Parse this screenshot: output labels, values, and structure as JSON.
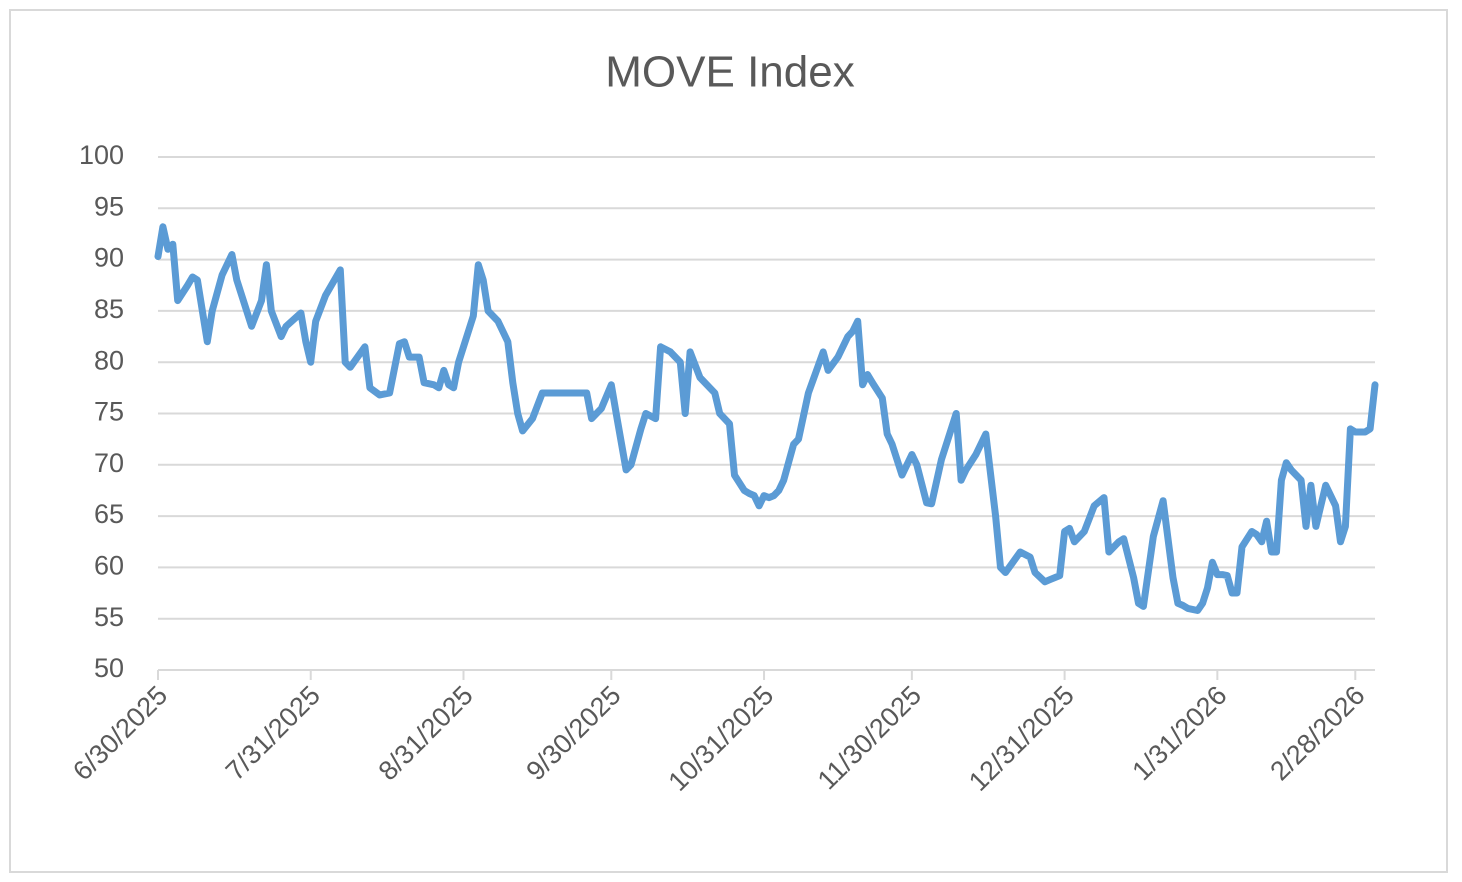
{
  "chart_data": {
    "type": "line",
    "title": "MOVE Index",
    "x": [
      "6/30/2025",
      "7/1/2025",
      "7/2/2025",
      "7/3/2025",
      "7/4/2025",
      "7/6/2025",
      "7/7/2025",
      "7/8/2025",
      "7/10/2025",
      "7/11/2025",
      "7/13/2025",
      "7/15/2025",
      "7/16/2025",
      "7/19/2025",
      "7/21/2025",
      "7/22/2025",
      "7/23/2025",
      "7/25/2025",
      "7/26/2025",
      "7/29/2025",
      "7/30/2025",
      "7/31/2025",
      "8/1/2025",
      "8/3/2025",
      "8/6/2025",
      "8/7/2025",
      "8/8/2025",
      "8/11/2025",
      "8/12/2025",
      "8/14/2025",
      "8/16/2025",
      "8/18/2025",
      "8/19/2025",
      "8/20/2025",
      "8/22/2025",
      "8/23/2025",
      "8/25/2025",
      "8/26/2025",
      "8/27/2025",
      "8/28/2025",
      "8/29/2025",
      "8/30/2025",
      "9/2/2025",
      "9/3/2025",
      "9/4/2025",
      "9/5/2025",
      "9/7/2025",
      "9/9/2025",
      "9/10/2025",
      "9/11/2025",
      "9/12/2025",
      "9/14/2025",
      "9/16/2025",
      "9/20/2025",
      "9/24/2025",
      "9/25/2025",
      "9/26/2025",
      "9/28/2025",
      "9/30/2025",
      "10/1/2025",
      "10/3/2025",
      "10/4/2025",
      "10/6/2025",
      "10/7/2025",
      "10/9/2025",
      "10/10/2025",
      "10/12/2025",
      "10/14/2025",
      "10/15/2025",
      "10/16/2025",
      "10/18/2025",
      "10/21/2025",
      "10/22/2025",
      "10/24/2025",
      "10/25/2025",
      "10/27/2025",
      "10/28/2025",
      "10/29/2025",
      "10/30/2025",
      "10/31/2025",
      "11/1/2025",
      "11/2/2025",
      "11/3/2025",
      "11/4/2025",
      "11/6/2025",
      "11/7/2025",
      "11/9/2025",
      "11/12/2025",
      "11/13/2025",
      "11/15/2025",
      "11/17/2025",
      "11/18/2025",
      "11/19/2025",
      "11/20/2025",
      "11/21/2025",
      "11/22/2025",
      "11/24/2025",
      "11/25/2025",
      "11/26/2025",
      "11/28/2025",
      "11/30/2025",
      "12/1/2025",
      "12/3/2025",
      "12/4/2025",
      "12/6/2025",
      "12/9/2025",
      "12/10/2025",
      "12/11/2025",
      "12/13/2025",
      "12/15/2025",
      "12/17/2025",
      "12/18/2025",
      "12/19/2025",
      "12/22/2025",
      "12/24/2025",
      "12/25/2025",
      "12/27/2025",
      "12/28/2025",
      "12/30/2025",
      "12/31/2025",
      "1/1/2026",
      "1/2/2026",
      "1/4/2026",
      "1/6/2026",
      "1/8/2026",
      "1/9/2026",
      "1/11/2026",
      "1/12/2026",
      "1/14/2026",
      "1/15/2026",
      "1/16/2026",
      "1/18/2026",
      "1/20/2026",
      "1/22/2026",
      "1/23/2026",
      "1/24/2026",
      "1/25/2026",
      "1/27/2026",
      "1/28/2026",
      "1/29/2026",
      "1/30/2026",
      "1/31/2026",
      "2/1/2026",
      "2/2/2026",
      "2/3/2026",
      "2/4/2026",
      "2/5/2026",
      "2/7/2026",
      "2/8/2026",
      "2/9/2026",
      "2/10/2026",
      "2/11/2026",
      "2/12/2026",
      "2/13/2026",
      "2/14/2026",
      "2/15/2026",
      "2/17/2026",
      "2/18/2026",
      "2/19/2026",
      "2/20/2026",
      "2/21/2026",
      "2/22/2026",
      "2/24/2026",
      "2/25/2026",
      "2/26/2026",
      "2/27/2026",
      "2/28/2026",
      "3/2/2026",
      "3/3/2026",
      "3/4/2026"
    ],
    "series": [
      {
        "color": "#5b9bd5",
        "values": [
          90.3,
          93.2,
          91,
          91.5,
          86,
          87.5,
          88.3,
          88,
          82,
          85,
          88.5,
          90.5,
          88,
          83.5,
          86,
          89.5,
          85,
          82.5,
          83.5,
          84.8,
          82,
          80,
          84,
          86.5,
          89,
          80,
          79.5,
          81.5,
          77.5,
          76.8,
          77,
          81.8,
          82,
          80.5,
          80.5,
          78,
          77.8,
          77.5,
          79.2,
          77.8,
          77.5,
          80,
          84.5,
          89.5,
          88,
          85,
          84,
          82,
          78,
          75,
          73.3,
          74.5,
          77,
          77,
          77,
          77,
          74.5,
          75.5,
          77.8,
          75,
          69.5,
          70,
          73.5,
          75,
          74.5,
          81.5,
          81,
          80,
          75,
          81,
          78.5,
          77,
          75,
          74,
          69,
          67.5,
          67.2,
          67,
          66,
          67,
          66.8,
          67,
          67.5,
          68.5,
          72,
          72.5,
          77,
          81,
          79.2,
          80.5,
          82.5,
          83,
          84,
          77.8,
          78.8,
          78,
          76.5,
          73,
          72,
          69,
          71,
          70,
          66.3,
          66.2,
          70.5,
          75,
          68.5,
          69.5,
          71,
          73,
          65,
          60,
          59.5,
          61.5,
          61,
          59.5,
          58.6,
          58.8,
          59.2,
          63.5,
          63.8,
          62.5,
          63.5,
          66,
          66.8,
          61.5,
          62.5,
          62.8,
          59,
          56.5,
          56.2,
          63,
          66.5,
          59,
          56.5,
          56.3,
          56,
          55.8,
          56.5,
          58,
          60.5,
          59.3,
          59.3,
          59.2,
          57.5,
          57.5,
          62,
          63.5,
          63.2,
          62.5,
          64.5,
          61.5,
          61.5,
          68.5,
          70.2,
          69.5,
          68.5,
          64,
          68,
          64,
          66,
          68,
          66,
          62.5,
          64,
          73.5,
          73.2,
          73.2,
          73.5,
          77.8
        ]
      }
    ],
    "xlim": [
      "6/30/2025",
      "3/4/2026"
    ],
    "xticks": [
      "6/30/2025",
      "7/31/2025",
      "8/31/2025",
      "9/30/2025",
      "10/31/2025",
      "11/30/2025",
      "12/31/2025",
      "1/31/2026",
      "2/28/2026"
    ],
    "ylim": [
      50,
      100
    ],
    "yticks": [
      50,
      55,
      60,
      65,
      70,
      75,
      80,
      85,
      90,
      95,
      100
    ],
    "grid": true
  }
}
